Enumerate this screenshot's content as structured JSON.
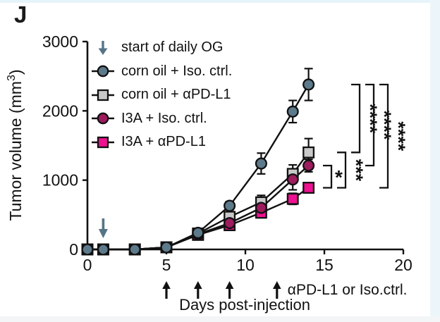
{
  "panel_label": "J",
  "frame": {
    "background": "#ffffff",
    "top_strip": "#e7f4fa",
    "right_strip": "#ecf6fa",
    "bottom_strip": "#f3f5f6"
  },
  "legend": {
    "items": [
      {
        "label": "start of daily OG",
        "marker": "arrow-down",
        "color": "#567486",
        "stroke": "#111111"
      },
      {
        "label": "corn oil + Iso. ctrl.",
        "marker": "circle",
        "color": "#5d7a8b",
        "stroke": "#111111"
      },
      {
        "label": "corn oil + αPD-L1",
        "marker": "square",
        "color": "#c9c9c9",
        "stroke": "#111111"
      },
      {
        "label": "I3A + Iso. ctrl.",
        "marker": "circle",
        "color": "#9e1b5e",
        "stroke": "#111111"
      },
      {
        "label": "I3A + αPD-L1",
        "marker": "square",
        "color": "#ee1190",
        "stroke": "#111111"
      }
    ]
  },
  "chart_data": {
    "type": "line",
    "title": "",
    "xlabel": "Days post-injection",
    "ylabel_main": "Tumor volume (mm",
    "ylabel_sup": "3",
    "ylabel_close": ")",
    "xlim": [
      0,
      20
    ],
    "ylim": [
      0,
      3000
    ],
    "xticks": [
      0,
      5,
      10,
      15,
      20
    ],
    "yticks": [
      0,
      1000,
      2000,
      3000
    ],
    "grid": false,
    "x": [
      0,
      1,
      3,
      5,
      7,
      9,
      11,
      13,
      14
    ],
    "series": [
      {
        "name": "corn oil + Iso. ctrl.",
        "marker": "circle",
        "color": "#5d7a8b",
        "values": [
          0,
          0,
          0,
          30,
          240,
          630,
          1240,
          1990,
          2380
        ],
        "err": [
          0,
          0,
          0,
          0,
          30,
          60,
          150,
          160,
          230
        ]
      },
      {
        "name": "corn oil + αPD-L1",
        "marker": "square",
        "color": "#c9c9c9",
        "values": [
          0,
          0,
          0,
          30,
          230,
          470,
          680,
          1090,
          1400
        ],
        "err": [
          0,
          0,
          0,
          0,
          30,
          60,
          100,
          130,
          200
        ]
      },
      {
        "name": "I3A + Iso. ctrl.",
        "marker": "circle",
        "color": "#9e1b5e",
        "values": [
          0,
          0,
          0,
          30,
          220,
          380,
          600,
          1010,
          1210
        ],
        "err": [
          0,
          0,
          0,
          0,
          30,
          50,
          120,
          150,
          90
        ]
      },
      {
        "name": "I3A + αPD-L1",
        "marker": "square",
        "color": "#ee1190",
        "values": [
          0,
          0,
          0,
          30,
          210,
          350,
          530,
          730,
          890
        ],
        "err": [
          0,
          0,
          0,
          0,
          20,
          40,
          60,
          80,
          60
        ]
      }
    ],
    "og_arrow": {
      "day": 1,
      "label": "start of daily OG",
      "color": "#567486"
    },
    "treatment_arrows": {
      "days": [
        5,
        7,
        9,
        12
      ],
      "label": "αPD-L1 or Iso.ctrl.",
      "color": "#111111"
    },
    "significance": [
      {
        "a": 2,
        "b": 3,
        "label": "*"
      },
      {
        "a": 1,
        "b": 3,
        "label": "***"
      },
      {
        "a": 0,
        "b": 1,
        "label": "****"
      },
      {
        "a": 0,
        "b": 2,
        "label": "****"
      },
      {
        "a": 0,
        "b": 3,
        "label": "****"
      }
    ],
    "line_color": "#111111"
  }
}
